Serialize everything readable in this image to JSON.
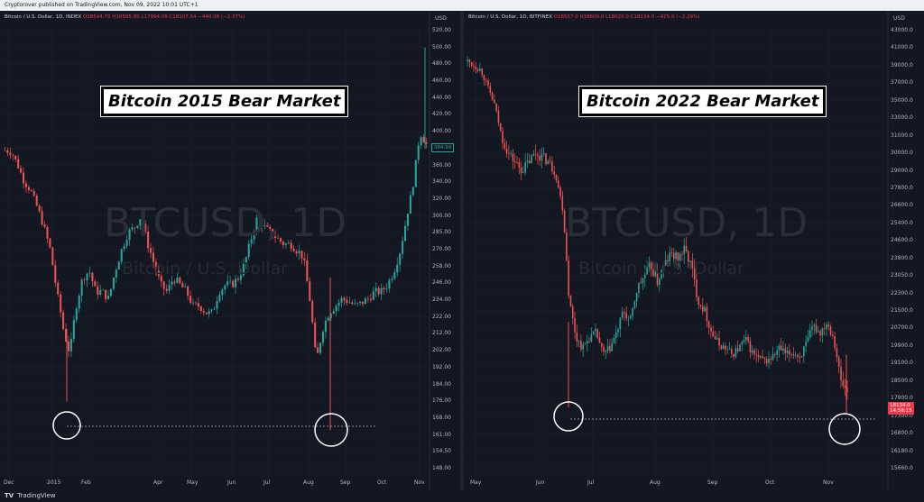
{
  "header": {
    "text": "Cryptorover published on TradingView.com, Nov 09, 2022 10:01 UTC+1"
  },
  "footer": {
    "logo": "TV",
    "brand": "TradingView"
  },
  "left_chart": {
    "legend": {
      "symbol": "Bitcoin / U.S. Dollar, 1D, INDEX",
      "ohlc": "O18544.75 H18585.85 L17994.08 C18107.54 −440.08 (−2.37%)"
    },
    "watermark_symbol": "BTCUSD, 1D",
    "watermark_name": "Bitcoin / U.S. Dollar",
    "banner": "Bitcoin 2015 Bear Market",
    "currency": "USD",
    "price_labels": [
      "520.00",
      "500.00",
      "480.00",
      "460.00",
      "440.00",
      "420.00",
      "400.00",
      "380.00",
      "360.00",
      "340.00",
      "320.00",
      "300.00",
      "285.00",
      "270.00",
      "258.00",
      "246.00",
      "234.00",
      "222.00",
      "212.00",
      "202.00",
      "192.00",
      "184.00",
      "176.00",
      "168.00",
      "161.00",
      "154.50",
      "148.00"
    ],
    "time_labels": [
      "Dec",
      "2015",
      "Feb",
      "Apr",
      "May",
      "Jun",
      "Jul",
      "Aug",
      "Sep",
      "Oct",
      "Nov"
    ],
    "last_price": "384.99"
  },
  "right_chart": {
    "legend": {
      "symbol": "Bitcoin / U.S. Dollar, 1D, BITFINEX",
      "ohlc": "O18557.0 H18600.0 L18020.0 C18134.0 −425.0 (−2.29%)"
    },
    "watermark_symbol": "BTCUSD, 1D",
    "watermark_name": "Bitcoin / U.S. Dollar",
    "banner": "Bitcoin 2022 Bear Market",
    "currency": "USD",
    "price_labels": [
      "43000.0",
      "41000.0",
      "39000.0",
      "37000.0",
      "35000.0",
      "33000.0",
      "31000.0",
      "30000.0",
      "29000.0",
      "27800.0",
      "26600.0",
      "25400.0",
      "24600.0",
      "23800.0",
      "23050.0",
      "22300.0",
      "21500.0",
      "20700.0",
      "19900.0",
      "19100.0",
      "18500.0",
      "17900.0",
      "17300.0",
      "16800.0",
      "16180.0",
      "15660.0"
    ],
    "time_labels": [
      "May",
      "Jun",
      "Jul",
      "Aug",
      "Sep",
      "Oct",
      "Nov"
    ],
    "last_price": "18134.0",
    "countdown": "14:58:15"
  },
  "colors": {
    "up": "#26a69a",
    "down": "#ef5350",
    "background": "#131722",
    "grid": "#1f2330"
  },
  "chart_data": [
    {
      "type": "candlestick",
      "title": "Bitcoin 2015 Bear Market",
      "ylabel": "USD",
      "ylim": [
        148,
        520
      ],
      "x": [
        "Dec",
        "2015",
        "Feb",
        "Apr",
        "May",
        "Jun",
        "Jul",
        "Aug",
        "Sep",
        "Oct",
        "Nov"
      ],
      "close_path": [
        378,
        376,
        360,
        340,
        330,
        310,
        290,
        270,
        240,
        215,
        200,
        230,
        250,
        255,
        240,
        240,
        235,
        255,
        270,
        285,
        290,
        300,
        275,
        260,
        245,
        240,
        250,
        245,
        240,
        230,
        230,
        225,
        225,
        240,
        245,
        245,
        250,
        260,
        280,
        300,
        290,
        285,
        280,
        275,
        275,
        270,
        265,
        235,
        195,
        215,
        225,
        230,
        235,
        233,
        230,
        232,
        235,
        240,
        240,
        245,
        255,
        270,
        300,
        340,
        400,
        385
      ]
    },
    {
      "type": "candlestick",
      "title": "Bitcoin 2022 Bear Market",
      "ylabel": "USD",
      "ylim": [
        15660,
        43000
      ],
      "x": [
        "May",
        "Jun",
        "Jul",
        "Aug",
        "Sep",
        "Oct",
        "Nov"
      ],
      "close_path": [
        39500,
        39000,
        38500,
        36500,
        34500,
        31000,
        30000,
        29500,
        29000,
        29500,
        30000,
        29800,
        29500,
        28800,
        26500,
        22000,
        20300,
        19800,
        20300,
        20500,
        19500,
        19800,
        20500,
        21500,
        21000,
        22500,
        23000,
        23500,
        22800,
        23500,
        24000,
        23800,
        24200,
        23500,
        22000,
        21500,
        20500,
        20000,
        19800,
        19500,
        19800,
        20200,
        19600,
        19300,
        19200,
        19400,
        19800,
        19500,
        19600,
        19400,
        20000,
        20800,
        20500,
        21000,
        20300,
        18500,
        18134
      ]
    }
  ]
}
